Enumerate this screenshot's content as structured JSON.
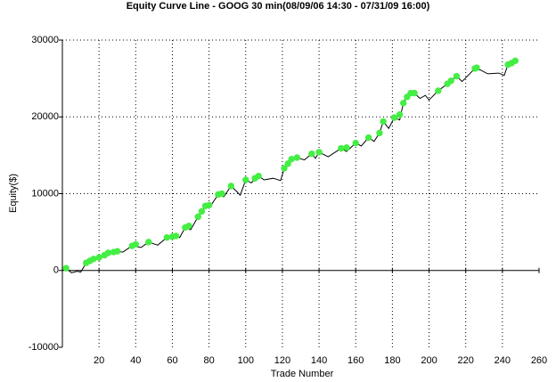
{
  "chart_data": {
    "type": "line",
    "title": "Equity Curve Line - GOOG 30 min(08/09/06 14:30 - 07/31/09 16:00)",
    "x_label": "Trade Number",
    "y_label": "Equity($)",
    "xlim": [
      0,
      260
    ],
    "ylim": [
      -10000,
      30000
    ],
    "xticks": [
      20,
      40,
      60,
      80,
      100,
      120,
      140,
      160,
      180,
      200,
      220,
      240,
      260
    ],
    "yticks": [
      -10000,
      0,
      10000,
      20000,
      30000
    ],
    "grid": true,
    "color": "#000000",
    "x": [
      0,
      2,
      5,
      8,
      10,
      13,
      17,
      20,
      25,
      30,
      33,
      38,
      43,
      47,
      52,
      57,
      62,
      64,
      67,
      70,
      74,
      78,
      80,
      85,
      88,
      92,
      95,
      97,
      100,
      103,
      107,
      110,
      115,
      119,
      121,
      124,
      128,
      132,
      136,
      138,
      140,
      145,
      152,
      155,
      160,
      163,
      167,
      170,
      173,
      175,
      178,
      181,
      184,
      186,
      189,
      192,
      195,
      198,
      200,
      205,
      210,
      215,
      218,
      225,
      228,
      232,
      238,
      241,
      243,
      247
    ],
    "values": [
      0,
      300,
      -300,
      -100,
      -200,
      1000,
      1500,
      1700,
      2300,
      2500,
      2400,
      3200,
      3000,
      3700,
      3300,
      4300,
      4500,
      4300,
      5600,
      5300,
      7000,
      8400,
      8100,
      9900,
      9600,
      11000,
      10300,
      9800,
      11800,
      11400,
      12300,
      11800,
      12000,
      11700,
      13300,
      14500,
      14700,
      14400,
      15200,
      14600,
      15400,
      14800,
      15900,
      15500,
      16600,
      16200,
      17300,
      16800,
      17900,
      19400,
      18500,
      19900,
      19600,
      21800,
      23100,
      23100,
      22400,
      22800,
      22200,
      23400,
      24300,
      25300,
      24600,
      26300,
      26100,
      25600,
      25700,
      25400,
      26800,
      27300
    ],
    "markers": {
      "color": "#44ee44",
      "x": [
        2,
        13,
        15,
        17,
        20,
        23,
        25,
        28,
        30,
        38,
        40,
        47,
        57,
        60,
        62,
        67,
        69,
        74,
        76,
        78,
        80,
        85,
        87,
        92,
        100,
        105,
        107,
        121,
        123,
        125,
        128,
        136,
        140,
        152,
        155,
        160,
        167,
        173,
        175,
        181,
        184,
        186,
        188,
        190,
        192,
        205,
        210,
        212,
        215,
        225,
        226,
        243,
        245,
        247
      ],
      "values": [
        300,
        1000,
        1250,
        1500,
        1700,
        2000,
        2300,
        2400,
        2500,
        3200,
        3400,
        3700,
        4300,
        4400,
        4500,
        5600,
        5800,
        7000,
        7700,
        8400,
        8500,
        9900,
        10000,
        11000,
        11800,
        12000,
        12300,
        13300,
        13900,
        14500,
        14700,
        15200,
        15400,
        15900,
        16000,
        16600,
        17300,
        17900,
        19400,
        19900,
        20300,
        21800,
        22600,
        23100,
        23100,
        23400,
        24300,
        24700,
        25300,
        26300,
        26400,
        26800,
        27000,
        27300
      ]
    }
  }
}
